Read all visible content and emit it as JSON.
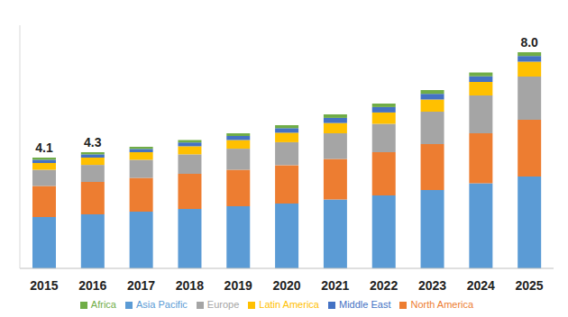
{
  "chart_data": {
    "type": "bar",
    "stacked": true,
    "grid": false,
    "legend": "bottom",
    "tick_labels": "x",
    "categories": [
      "2015",
      "2016",
      "2017",
      "2018",
      "2019",
      "2020",
      "2021",
      "2022",
      "2023",
      "2024",
      "2025"
    ],
    "ylim": [
      0,
      9
    ],
    "series": [
      {
        "name": "Asia Pacific",
        "color": "#5B9BD5",
        "values": [
          1.9,
          2.0,
          2.1,
          2.2,
          2.3,
          2.4,
          2.55,
          2.7,
          2.9,
          3.15,
          3.4
        ]
      },
      {
        "name": "North America",
        "color": "#ED7D31",
        "values": [
          1.15,
          1.2,
          1.25,
          1.3,
          1.35,
          1.42,
          1.5,
          1.6,
          1.7,
          1.85,
          2.1
        ]
      },
      {
        "name": "Europe",
        "color": "#A5A5A5",
        "values": [
          0.6,
          0.63,
          0.67,
          0.72,
          0.78,
          0.85,
          0.95,
          1.05,
          1.2,
          1.4,
          1.6
        ]
      },
      {
        "name": "Latin America",
        "color": "#FFC000",
        "values": [
          0.25,
          0.27,
          0.28,
          0.3,
          0.32,
          0.35,
          0.38,
          0.42,
          0.45,
          0.5,
          0.55
        ]
      },
      {
        "name": "Middle East",
        "color": "#4472C4",
        "values": [
          0.12,
          0.12,
          0.12,
          0.14,
          0.15,
          0.17,
          0.19,
          0.2,
          0.21,
          0.21,
          0.21
        ]
      },
      {
        "name": "Africa",
        "color": "#70AD47",
        "values": [
          0.08,
          0.08,
          0.08,
          0.09,
          0.1,
          0.11,
          0.13,
          0.13,
          0.14,
          0.14,
          0.14
        ]
      }
    ],
    "annotations": [
      {
        "x": "2015",
        "value": 4.1,
        "label": "4.1"
      },
      {
        "x": "2016",
        "value": 4.3,
        "label": "4.3"
      },
      {
        "x": "2025",
        "value": 8.0,
        "label": "8.0"
      }
    ]
  }
}
